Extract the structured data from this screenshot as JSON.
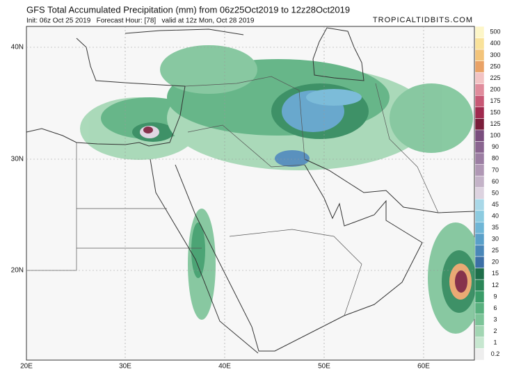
{
  "header": {
    "title": "GFS Total Accumulated Precipitation (mm) from 06z25Oct2019 to 12z28Oct2019",
    "subtitle": "Init: 06z Oct 25 2019   Forecast Hour: [78]   valid at 12z Mon, Oct 28 2019",
    "source": "TROPICALTIDBITS.COM"
  },
  "map": {
    "lat_labels": [
      "40N",
      "30N",
      "20N"
    ],
    "lon_labels": [
      "20E",
      "30E",
      "40E",
      "50E",
      "60E"
    ]
  },
  "legend": {
    "levels": [
      {
        "value": 500,
        "color": "#fdf6c8"
      },
      {
        "value": 400,
        "color": "#f9e29a"
      },
      {
        "value": 300,
        "color": "#f3c47a"
      },
      {
        "value": 250,
        "color": "#e9a266"
      },
      {
        "value": 225,
        "color": "#f2c3c4"
      },
      {
        "value": 200,
        "color": "#e08c9c"
      },
      {
        "value": 175,
        "color": "#c85875"
      },
      {
        "value": 150,
        "color": "#a02a4e"
      },
      {
        "value": 125,
        "color": "#7a1d3a"
      },
      {
        "value": 100,
        "color": "#7a4e7e"
      },
      {
        "value": 90,
        "color": "#8a6590"
      },
      {
        "value": 80,
        "color": "#9c7ea3"
      },
      {
        "value": 70,
        "color": "#b098b5"
      },
      {
        "value": 60,
        "color": "#c4b3c8"
      },
      {
        "value": 50,
        "color": "#ddd3e0"
      },
      {
        "value": 45,
        "color": "#a9d8e8"
      },
      {
        "value": 40,
        "color": "#8ccbe0"
      },
      {
        "value": 35,
        "color": "#6fb6d6"
      },
      {
        "value": 30,
        "color": "#5aa0c9"
      },
      {
        "value": 25,
        "color": "#4a87b8"
      },
      {
        "value": 20,
        "color": "#3c6fa6"
      },
      {
        "value": 15,
        "color": "#1e6e4a"
      },
      {
        "value": 12,
        "color": "#2b8658"
      },
      {
        "value": 9,
        "color": "#3a9c68"
      },
      {
        "value": 6,
        "color": "#58b07e"
      },
      {
        "value": 3,
        "color": "#7cc498"
      },
      {
        "value": 2,
        "color": "#a2d6b3"
      },
      {
        "value": 1,
        "color": "#c7e7d0"
      },
      {
        "value": 0.2,
        "color": "#eeeeee"
      }
    ]
  }
}
